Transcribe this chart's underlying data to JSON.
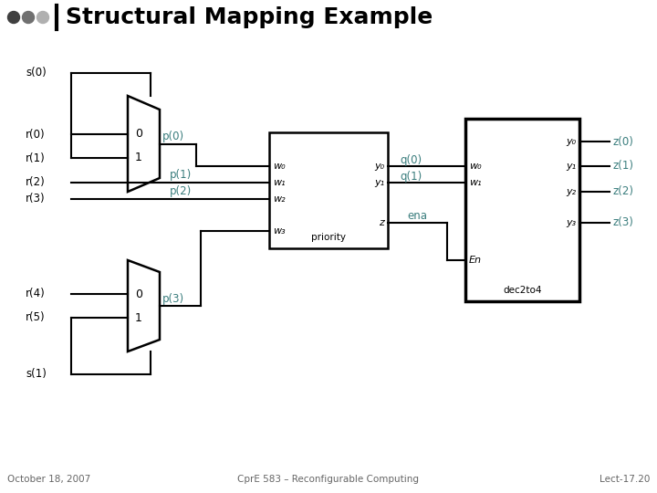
{
  "title": "Structural Mapping Example",
  "bg_color": "#ffffff",
  "title_color": "#000000",
  "line_color": "#000000",
  "teal_color": "#3a7d7d",
  "footer_left": "October 18, 2007",
  "footer_center": "CprE 583 – Reconfigurable Computing",
  "footer_right": "Lect-17.20",
  "dot_colors": [
    "#404040",
    "#707070",
    "#b0b0b0"
  ]
}
